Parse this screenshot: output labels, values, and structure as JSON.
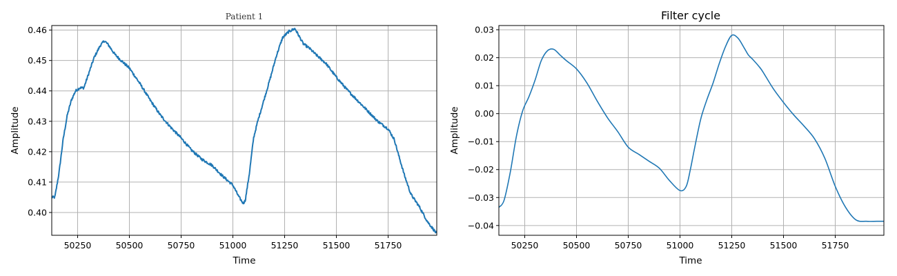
{
  "chart_data": [
    {
      "type": "line",
      "title": "Patient 1",
      "xlabel": "Time",
      "ylabel": "Amplitude",
      "xlim": [
        50125,
        51985
      ],
      "ylim": [
        0.3925,
        0.4615
      ],
      "xticks": [
        50250,
        50500,
        50750,
        51000,
        51250,
        51500,
        51750
      ],
      "xtick_labels": [
        "50250",
        "50500",
        "50750",
        "51000",
        "51250",
        "51500",
        "51750"
      ],
      "yticks": [
        0.4,
        0.41,
        0.42,
        0.43,
        0.44,
        0.45,
        0.46
      ],
      "ytick_labels": [
        "0.40",
        "0.41",
        "0.42",
        "0.43",
        "0.44",
        "0.45",
        "0.46"
      ],
      "grid": true,
      "noisy": true,
      "color": "#1f77b4",
      "series": [
        {
          "x": [
            50125,
            50140,
            50160,
            50180,
            50200,
            50220,
            50240,
            50260,
            50280,
            50300,
            50330,
            50360,
            50380,
            50400,
            50430,
            50460,
            50500,
            50550,
            50600,
            50650,
            50700,
            50750,
            50800,
            50850,
            50900,
            50950,
            51000,
            51030,
            51050,
            51060,
            51080,
            51100,
            51120,
            51150,
            51180,
            51210,
            51240,
            51270,
            51300,
            51320,
            51340,
            51370,
            51400,
            51450,
            51500,
            51550,
            51600,
            51650,
            51700,
            51750,
            51780,
            51800,
            51830,
            51860,
            51900,
            51940,
            51985
          ],
          "y": [
            0.405,
            0.405,
            0.413,
            0.424,
            0.432,
            0.437,
            0.44,
            0.441,
            0.441,
            0.445,
            0.451,
            0.455,
            0.4565,
            0.455,
            0.452,
            0.45,
            0.4475,
            0.4425,
            0.437,
            0.432,
            0.428,
            0.4245,
            0.4205,
            0.4175,
            0.4155,
            0.412,
            0.409,
            0.405,
            0.403,
            0.404,
            0.413,
            0.4245,
            0.43,
            0.437,
            0.444,
            0.4515,
            0.4575,
            0.4595,
            0.4605,
            0.458,
            0.4555,
            0.454,
            0.452,
            0.449,
            0.4445,
            0.4405,
            0.437,
            0.4335,
            0.43,
            0.4275,
            0.424,
            0.419,
            0.412,
            0.406,
            0.402,
            0.397,
            0.393
          ]
        }
      ]
    },
    {
      "type": "line",
      "title": "Filter cycle",
      "xlabel": "Time",
      "ylabel": "Amplitude",
      "xlim": [
        50125,
        51985
      ],
      "ylim": [
        -0.0435,
        0.0315
      ],
      "xticks": [
        50250,
        50500,
        50750,
        51000,
        51250,
        51500,
        51750
      ],
      "xtick_labels": [
        "50250",
        "50500",
        "50750",
        "51000",
        "51250",
        "51500",
        "51750"
      ],
      "yticks": [
        -0.04,
        -0.03,
        -0.02,
        -0.01,
        0.0,
        0.01,
        0.02,
        0.03
      ],
      "ytick_labels": [
        "−0.04",
        "−0.03",
        "−0.02",
        "−0.01",
        "0.00",
        "0.01",
        "0.02",
        "0.03"
      ],
      "grid": true,
      "noisy": false,
      "color": "#1f77b4",
      "series": [
        {
          "x": [
            50125,
            50150,
            50180,
            50210,
            50240,
            50270,
            50300,
            50330,
            50360,
            50390,
            50420,
            50450,
            50500,
            50550,
            50600,
            50650,
            50700,
            50750,
            50800,
            50850,
            50900,
            50950,
            51000,
            51030,
            51050,
            51070,
            51100,
            51130,
            51160,
            51190,
            51220,
            51250,
            51280,
            51310,
            51330,
            51350,
            51380,
            51400,
            51450,
            51500,
            51550,
            51600,
            51650,
            51700,
            51750,
            51800,
            51850,
            51900,
            51950,
            51985
          ],
          "y": [
            -0.0335,
            -0.031,
            -0.021,
            -0.008,
            0.001,
            0.006,
            0.012,
            0.019,
            0.0225,
            0.023,
            0.021,
            0.019,
            0.016,
            0.011,
            0.0045,
            -0.0015,
            -0.0065,
            -0.012,
            -0.0145,
            -0.017,
            -0.0195,
            -0.024,
            -0.0275,
            -0.026,
            -0.02,
            -0.0125,
            -0.002,
            0.005,
            0.011,
            0.018,
            0.024,
            0.028,
            0.027,
            0.0235,
            0.021,
            0.0195,
            0.017,
            0.015,
            0.009,
            0.004,
            -0.0005,
            -0.0045,
            -0.009,
            -0.016,
            -0.026,
            -0.0335,
            -0.038,
            -0.0385,
            -0.0385,
            -0.0385
          ]
        }
      ]
    }
  ]
}
